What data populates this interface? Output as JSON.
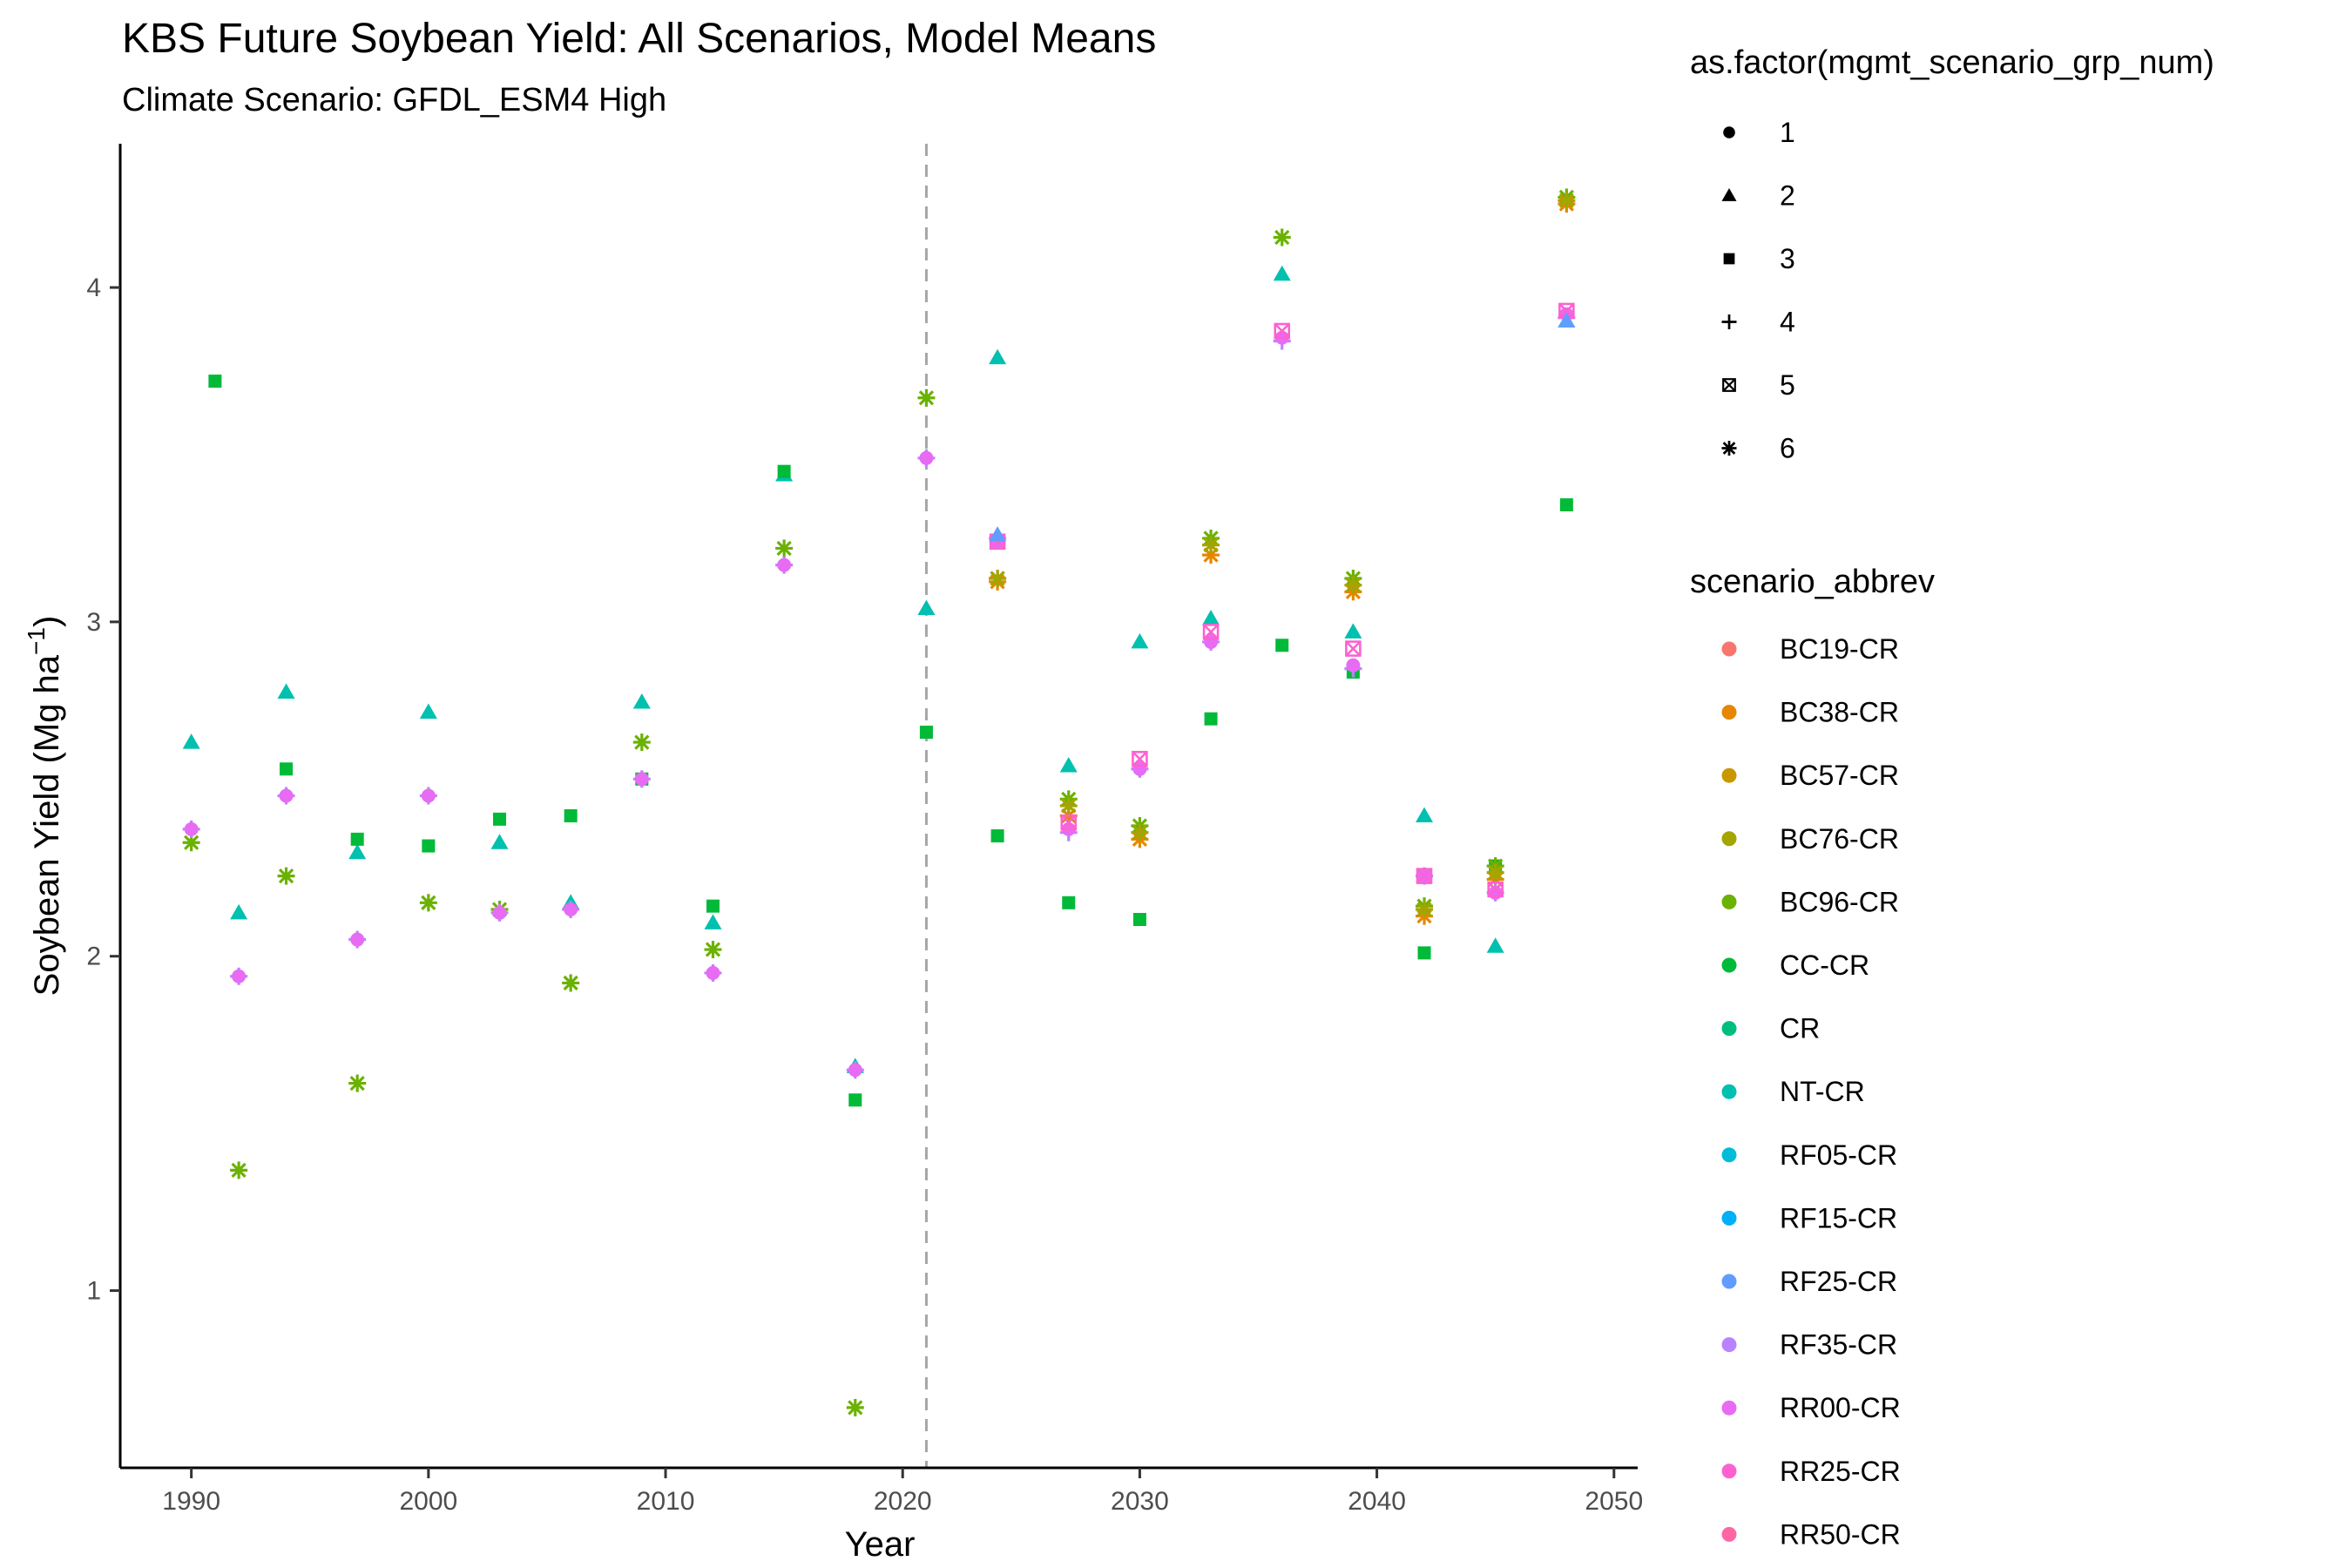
{
  "chart_data": {
    "type": "scatter",
    "title": "KBS Future Soybean Yield: All Scenarios, Model Means",
    "subtitle": "Climate Scenario: GFDL_ESM4 High",
    "xlabel": "Year",
    "ylabel": "Soybean Yield (Mg ha",
    "ylabel_superscript": "−1",
    "ylabel_suffix": ")",
    "xlim": [
      1987,
      2051
    ],
    "ylim": [
      0.47,
      4.43
    ],
    "x_ticks": [
      1990,
      2000,
      2010,
      2020,
      2030,
      2040,
      2050
    ],
    "y_ticks": [
      1,
      2,
      3,
      4
    ],
    "grid": false,
    "reference_line": {
      "x": 2021,
      "style": "dashed",
      "color": "#a6a6a6"
    },
    "legend_placement": "right",
    "shape_legend": {
      "title": "as.factor(mgmt_scenario_grp_num)",
      "entries": [
        {
          "label": "1",
          "shape": "circle"
        },
        {
          "label": "2",
          "shape": "triangle"
        },
        {
          "label": "3",
          "shape": "square"
        },
        {
          "label": "4",
          "shape": "plus"
        },
        {
          "label": "5",
          "shape": "boxx"
        },
        {
          "label": "6",
          "shape": "asterisk"
        }
      ]
    },
    "color_legend": {
      "title": "scenario_abbrev",
      "entries": [
        {
          "label": "BC19-CR",
          "color": "#F8766D"
        },
        {
          "label": "BC38-CR",
          "color": "#E58700"
        },
        {
          "label": "BC57-CR",
          "color": "#C99800"
        },
        {
          "label": "BC76-CR",
          "color": "#A3A500"
        },
        {
          "label": "BC96-CR",
          "color": "#6BB100"
        },
        {
          "label": "CC-CR",
          "color": "#00BA38"
        },
        {
          "label": "CR",
          "color": "#00BF7D"
        },
        {
          "label": "NT-CR",
          "color": "#00C0AF"
        },
        {
          "label": "RF05-CR",
          "color": "#00BCD8"
        },
        {
          "label": "RF15-CR",
          "color": "#00B0F6"
        },
        {
          "label": "RF25-CR",
          "color": "#619CFF"
        },
        {
          "label": "RF35-CR",
          "color": "#B983FF"
        },
        {
          "label": "RR00-CR",
          "color": "#E76BF3"
        },
        {
          "label": "RR25-CR",
          "color": "#FD61D1"
        },
        {
          "label": "RR50-CR",
          "color": "#FF67A4"
        }
      ]
    },
    "series": [
      {
        "scenario": "NT-CR",
        "shape": "triangle",
        "color": "#00C0AF",
        "points": [
          [
            1990,
            2.64
          ],
          [
            1992,
            2.13
          ],
          [
            1994,
            2.79
          ],
          [
            1997,
            2.31
          ],
          [
            2000,
            2.73
          ],
          [
            2003,
            2.34
          ],
          [
            2006,
            2.16
          ],
          [
            2009,
            2.76
          ],
          [
            2012,
            2.1
          ],
          [
            2015,
            3.44
          ],
          [
            2018,
            1.67
          ],
          [
            2021,
            3.04
          ],
          [
            2024,
            3.79
          ],
          [
            2027,
            2.57
          ],
          [
            2030,
            2.94
          ],
          [
            2033,
            3.01
          ],
          [
            2036,
            4.04
          ],
          [
            2039,
            2.97
          ],
          [
            2042,
            2.42
          ],
          [
            2045,
            2.03
          ],
          [
            2048,
            3.9
          ]
        ]
      },
      {
        "scenario": "CC-CR",
        "shape": "square",
        "color": "#00BA38",
        "points": [
          [
            1991,
            3.72
          ],
          [
            1994,
            2.56
          ],
          [
            1997,
            2.35
          ],
          [
            2000,
            2.33
          ],
          [
            2003,
            2.41
          ],
          [
            2006,
            2.42
          ],
          [
            2009,
            2.53
          ],
          [
            2012,
            2.15
          ],
          [
            2015,
            3.45
          ],
          [
            2018,
            1.57
          ],
          [
            2021,
            2.67
          ],
          [
            2024,
            2.36
          ],
          [
            2027,
            2.16
          ],
          [
            2030,
            2.11
          ],
          [
            2033,
            2.71
          ],
          [
            2036,
            2.93
          ],
          [
            2039,
            2.85
          ],
          [
            2042,
            2.01
          ],
          [
            2045,
            2.27
          ],
          [
            2048,
            3.35
          ]
        ]
      },
      {
        "scenario": "BC96-CR",
        "shape": "asterisk",
        "color": "#6BB100",
        "points": [
          [
            1990,
            2.34
          ],
          [
            1992,
            1.36
          ],
          [
            1994,
            2.24
          ],
          [
            1997,
            1.62
          ],
          [
            2000,
            2.16
          ],
          [
            2003,
            2.14
          ],
          [
            2006,
            1.92
          ],
          [
            2009,
            2.64
          ],
          [
            2012,
            2.02
          ],
          [
            2015,
            3.22
          ],
          [
            2018,
            0.65
          ],
          [
            2021,
            3.67
          ],
          [
            2024,
            3.13
          ],
          [
            2027,
            2.47
          ],
          [
            2030,
            2.39
          ],
          [
            2033,
            3.25
          ],
          [
            2036,
            4.15
          ],
          [
            2039,
            3.13
          ],
          [
            2042,
            2.15
          ],
          [
            2045,
            2.27
          ],
          [
            2048,
            4.27
          ]
        ]
      },
      {
        "scenario": "BC38-CR",
        "shape": "asterisk",
        "color": "#E58700",
        "points": [
          [
            2024,
            3.12
          ],
          [
            2027,
            2.42
          ],
          [
            2030,
            2.35
          ],
          [
            2033,
            3.2
          ],
          [
            2039,
            3.09
          ],
          [
            2042,
            2.12
          ],
          [
            2045,
            2.23
          ],
          [
            2048,
            4.25
          ]
        ]
      },
      {
        "scenario": "BC76-CR",
        "shape": "asterisk",
        "color": "#A3A500",
        "points": [
          [
            2024,
            3.13
          ],
          [
            2027,
            2.45
          ],
          [
            2030,
            2.37
          ],
          [
            2033,
            3.23
          ],
          [
            2039,
            3.11
          ],
          [
            2042,
            2.14
          ],
          [
            2045,
            2.25
          ],
          [
            2048,
            4.26
          ]
        ]
      },
      {
        "scenario": "RF35-CR",
        "shape": "plus",
        "color": "#B983FF",
        "points": [
          [
            1990,
            2.38
          ],
          [
            1992,
            1.94
          ],
          [
            1994,
            2.48
          ],
          [
            1997,
            2.05
          ],
          [
            2000,
            2.48
          ],
          [
            2003,
            2.13
          ],
          [
            2006,
            2.14
          ],
          [
            2009,
            2.53
          ],
          [
            2012,
            1.95
          ],
          [
            2015,
            3.17
          ],
          [
            2018,
            1.66
          ],
          [
            2021,
            3.49
          ],
          [
            2024,
            3.25
          ],
          [
            2027,
            2.37
          ],
          [
            2030,
            2.56
          ],
          [
            2033,
            2.94
          ],
          [
            2036,
            3.84
          ],
          [
            2039,
            2.86
          ],
          [
            2042,
            2.24
          ],
          [
            2045,
            2.19
          ],
          [
            2048,
            3.91
          ]
        ]
      },
      {
        "scenario": "RR00-CR",
        "shape": "circle",
        "color": "#E76BF3",
        "points": [
          [
            1990,
            2.38
          ],
          [
            1992,
            1.94
          ],
          [
            1994,
            2.48
          ],
          [
            1997,
            2.05
          ],
          [
            2000,
            2.48
          ],
          [
            2003,
            2.13
          ],
          [
            2006,
            2.14
          ],
          [
            2009,
            2.53
          ],
          [
            2012,
            1.95
          ],
          [
            2015,
            3.17
          ],
          [
            2018,
            1.66
          ],
          [
            2021,
            3.49
          ],
          [
            2024,
            3.24
          ],
          [
            2027,
            2.38
          ],
          [
            2030,
            2.56
          ],
          [
            2033,
            2.94
          ],
          [
            2036,
            3.85
          ],
          [
            2039,
            2.87
          ],
          [
            2042,
            2.24
          ],
          [
            2045,
            2.19
          ],
          [
            2048,
            3.92
          ]
        ]
      },
      {
        "scenario": "RR25-CR",
        "shape": "boxx",
        "color": "#FD61D1",
        "points": [
          [
            2024,
            3.24
          ],
          [
            2027,
            2.4
          ],
          [
            2030,
            2.59
          ],
          [
            2033,
            2.97
          ],
          [
            2036,
            3.87
          ],
          [
            2039,
            2.92
          ],
          [
            2042,
            2.24
          ],
          [
            2045,
            2.2
          ],
          [
            2048,
            3.93
          ]
        ]
      },
      {
        "scenario": "RF25-CR",
        "shape": "triangle",
        "color": "#619CFF",
        "points": [
          [
            2024,
            3.26
          ],
          [
            2048,
            3.9
          ]
        ]
      }
    ]
  }
}
